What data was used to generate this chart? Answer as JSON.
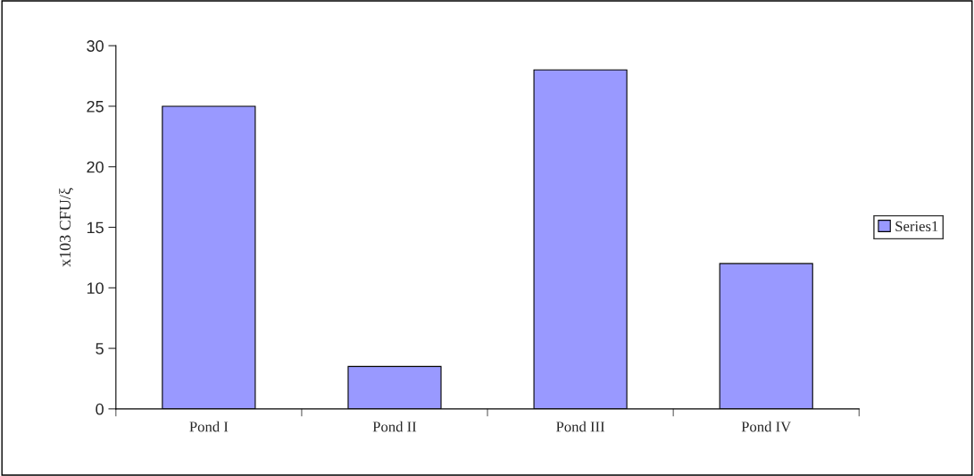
{
  "chart_data": {
    "type": "bar",
    "ylabel": "x103 CFU/ξ",
    "categories": [
      "Pond I",
      "Pond II",
      "Pond III",
      "Pond IV"
    ],
    "series": [
      {
        "name": "Series1",
        "color": "#9999ff",
        "values": [
          25,
          3.5,
          28,
          12
        ]
      }
    ],
    "ylim": [
      0,
      30
    ],
    "yticks": [
      0,
      5,
      10,
      15,
      20,
      25,
      30
    ],
    "grid": false,
    "legend": "right"
  }
}
